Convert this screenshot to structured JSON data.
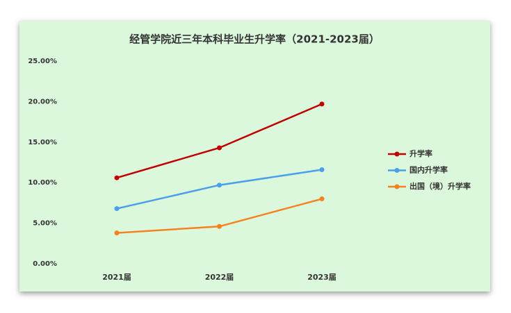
{
  "chart_data": {
    "type": "line",
    "title": "经管学院近三年本科毕业生升学率（2021-2023届）",
    "categories": [
      "2021届",
      "2022届",
      "2023届"
    ],
    "series": [
      {
        "name": "升学率",
        "color": "#c00000",
        "values": [
          10.6,
          14.3,
          19.7
        ]
      },
      {
        "name": "国内升学率",
        "color": "#4a9eea",
        "values": [
          6.8,
          9.7,
          11.6
        ]
      },
      {
        "name": "出国（境）升学率",
        "color": "#f58220",
        "values": [
          3.8,
          4.6,
          8.0
        ]
      }
    ],
    "ylim": [
      0,
      25
    ],
    "yticks": [
      {
        "value": 0,
        "label": "0.00%"
      },
      {
        "value": 5,
        "label": "5.00%"
      },
      {
        "value": 10,
        "label": "10.00%"
      },
      {
        "value": 15,
        "label": "15.00%"
      },
      {
        "value": 20,
        "label": "20.00%"
      },
      {
        "value": 25,
        "label": "25.00%"
      }
    ],
    "legend": "right",
    "background": "#dcf8dc"
  }
}
